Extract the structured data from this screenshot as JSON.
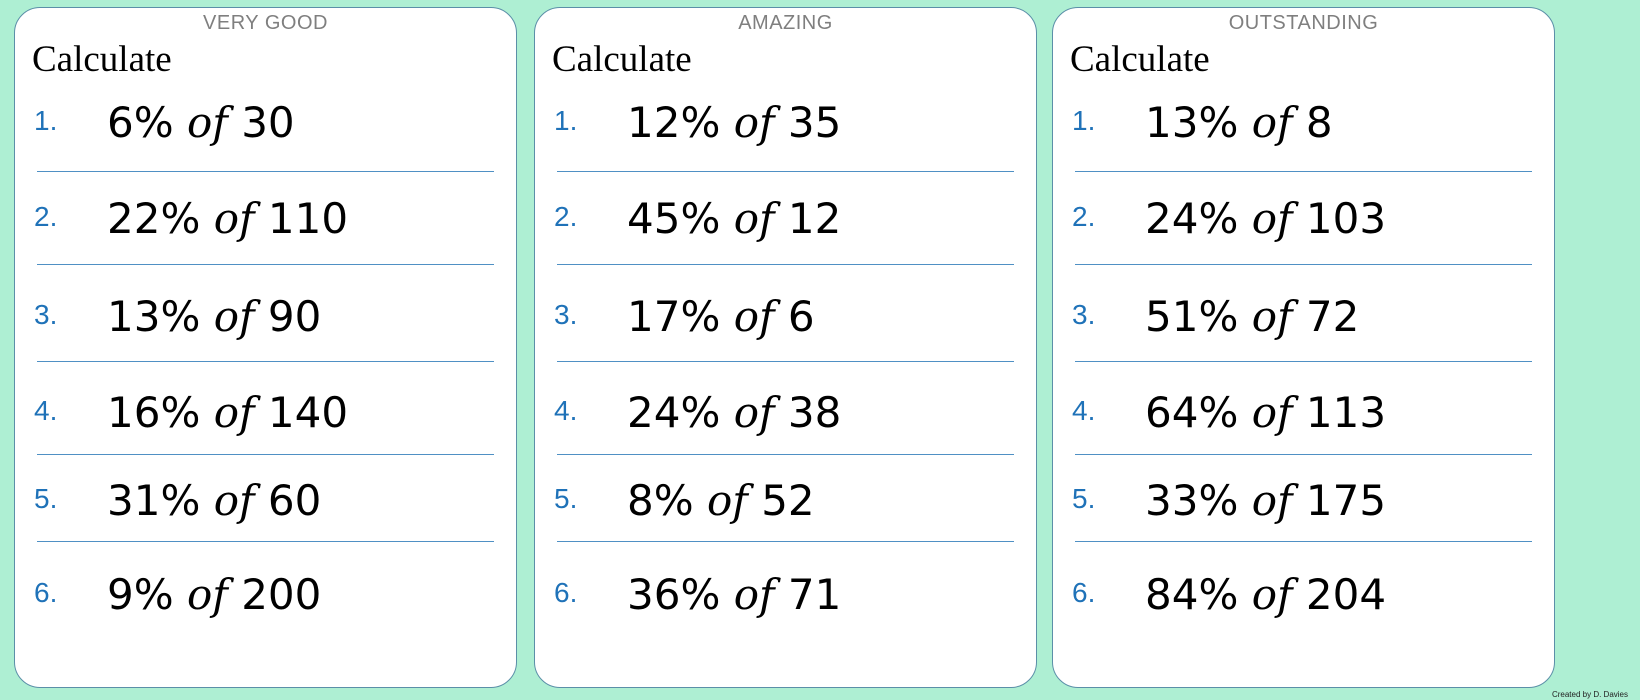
{
  "cards": [
    {
      "level": "VERY GOOD",
      "heading": "Calculate",
      "questions": [
        {
          "number": "1.",
          "percent": "6%",
          "of": "of",
          "value": "30"
        },
        {
          "number": "2.",
          "percent": "22%",
          "of": "of",
          "value": "110"
        },
        {
          "number": "3.",
          "percent": "13%",
          "of": "of",
          "value": "90"
        },
        {
          "number": "4.",
          "percent": "16%",
          "of": "of",
          "value": "140"
        },
        {
          "number": "5.",
          "percent": "31%",
          "of": "of",
          "value": "60"
        },
        {
          "number": "6.",
          "percent": "9%",
          "of": "of",
          "value": "200"
        }
      ]
    },
    {
      "level": "AMAZING",
      "heading": "Calculate",
      "questions": [
        {
          "number": "1.",
          "percent": "12%",
          "of": "of",
          "value": "35"
        },
        {
          "number": "2.",
          "percent": "45%",
          "of": "of",
          "value": "12"
        },
        {
          "number": "3.",
          "percent": "17%",
          "of": "of",
          "value": "6"
        },
        {
          "number": "4.",
          "percent": "24%",
          "of": "of",
          "value": "38"
        },
        {
          "number": "5.",
          "percent": "8%",
          "of": "of",
          "value": "52"
        },
        {
          "number": "6.",
          "percent": "36%",
          "of": "of",
          "value": "71"
        }
      ]
    },
    {
      "level": "OUTSTANDING",
      "heading": "Calculate",
      "questions": [
        {
          "number": "1.",
          "percent": "13%",
          "of": "of",
          "value": "8"
        },
        {
          "number": "2.",
          "percent": "24%",
          "of": "of",
          "value": "103"
        },
        {
          "number": "3.",
          "percent": "51%",
          "of": "of",
          "value": "72"
        },
        {
          "number": "4.",
          "percent": "64%",
          "of": "of",
          "value": "113"
        },
        {
          "number": "5.",
          "percent": "33%",
          "of": "of",
          "value": "175"
        },
        {
          "number": "6.",
          "percent": "84%",
          "of": "of",
          "value": "204"
        }
      ]
    }
  ],
  "credit": "Created by D. Davies",
  "colors": {
    "background": "#aeefd3",
    "card": "#ffffff",
    "card_border": "#5b8fa8",
    "number": "#1f72b8",
    "divider": "#4f90c4",
    "level_text": "#7f7f7f"
  }
}
